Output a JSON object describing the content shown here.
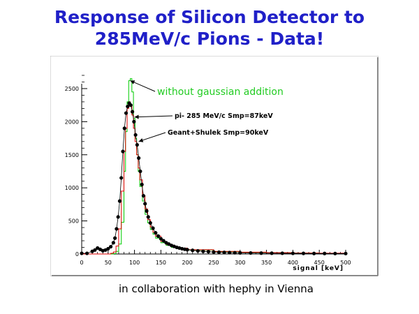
{
  "title_lines": [
    "Response of Silicon Detector to",
    "285MeV/c Pions  - Data!"
  ],
  "caption": "in collaboration with hephy in Vienna",
  "colors": {
    "title": "#2020c8",
    "green_series": "#00cc00",
    "red_series": "#e00000",
    "data_points": "#000000",
    "annotation_green": "#22cc22"
  },
  "chart_data": {
    "type": "line",
    "xlabel": "signal [keV]",
    "ylabel": "",
    "xlim": [
      0,
      500
    ],
    "ylim": [
      0,
      2700
    ],
    "x_ticks": [
      0,
      50,
      100,
      150,
      200,
      250,
      300,
      350,
      400,
      450,
      500
    ],
    "y_ticks": [
      0,
      500,
      1000,
      1500,
      2000,
      2500
    ],
    "grid": false,
    "annotations": [
      {
        "text": "without gaussian addition",
        "points_to": [
          88,
          2620
        ]
      },
      {
        "text": "pi- 285 MeV/c Smp=87keV",
        "points_to": [
          96,
          2070
        ]
      },
      {
        "text": "Geant+Shulek Smp=90keV",
        "points_to": [
          104,
          1700
        ]
      }
    ],
    "series": [
      {
        "kind": "step",
        "x": [
          0,
          60,
          65,
          70,
          75,
          80,
          83,
          86,
          89,
          92,
          95,
          98,
          101,
          104,
          107,
          110,
          115,
          120,
          125,
          130,
          135,
          140,
          150,
          160,
          170,
          180,
          200,
          250,
          300,
          350,
          400,
          450,
          500
        ],
        "y": [
          0,
          5,
          40,
          150,
          480,
          1250,
          1850,
          2300,
          2620,
          2650,
          2450,
          2050,
          1750,
          1500,
          1250,
          1020,
          800,
          600,
          470,
          370,
          300,
          240,
          170,
          130,
          100,
          80,
          60,
          35,
          25,
          18,
          14,
          10,
          10
        ]
      },
      {
        "kind": "step",
        "x": [
          0,
          55,
          60,
          65,
          70,
          75,
          80,
          83,
          86,
          89,
          92,
          95,
          98,
          101,
          104,
          107,
          110,
          115,
          120,
          125,
          130,
          135,
          140,
          150,
          160,
          170,
          180,
          200,
          250,
          300,
          350,
          400,
          450,
          500
        ],
        "y": [
          0,
          10,
          30,
          120,
          380,
          950,
          1550,
          1900,
          2200,
          2300,
          2250,
          2100,
          1900,
          1700,
          1500,
          1300,
          1120,
          880,
          680,
          520,
          410,
          330,
          270,
          190,
          145,
          115,
          90,
          65,
          40,
          28,
          20,
          15,
          12,
          10
        ]
      },
      {
        "kind": "points",
        "x": [
          0,
          10,
          20,
          25,
          30,
          35,
          40,
          45,
          50,
          55,
          60,
          63,
          66,
          69,
          72,
          75,
          78,
          81,
          84,
          87,
          90,
          93,
          96,
          99,
          102,
          105,
          108,
          111,
          114,
          117,
          120,
          123,
          126,
          130,
          135,
          140,
          145,
          150,
          155,
          160,
          165,
          170,
          175,
          180,
          185,
          190,
          195,
          200,
          210,
          220,
          230,
          240,
          250,
          260,
          270,
          280,
          290,
          300,
          320,
          340,
          360,
          380,
          400,
          420,
          440,
          460,
          480,
          500
        ],
        "y": [
          10,
          10,
          40,
          60,
          90,
          70,
          50,
          60,
          80,
          110,
          170,
          240,
          380,
          560,
          800,
          1150,
          1550,
          1900,
          2130,
          2230,
          2280,
          2250,
          2150,
          2000,
          1800,
          1650,
          1450,
          1250,
          1050,
          880,
          760,
          650,
          560,
          470,
          390,
          320,
          270,
          230,
          200,
          170,
          150,
          130,
          115,
          100,
          90,
          80,
          72,
          65,
          55,
          47,
          40,
          35,
          30,
          27,
          24,
          21,
          19,
          17,
          15,
          13,
          12,
          11,
          10,
          9,
          8,
          8,
          7,
          7
        ]
      }
    ]
  }
}
